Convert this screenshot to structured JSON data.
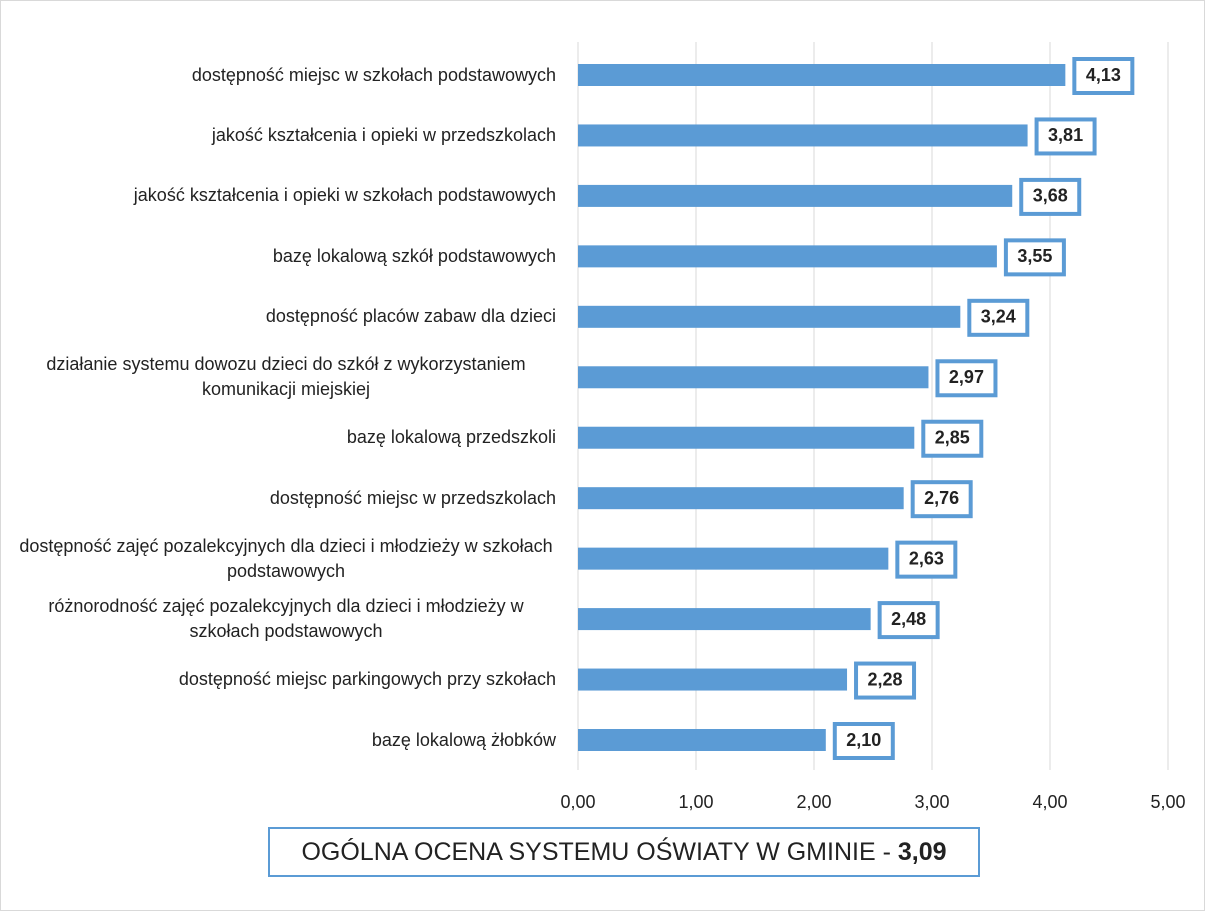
{
  "chart_data": {
    "type": "barh",
    "categories": [
      "dostępność miejsc w szkołach podstawowych",
      "jakość kształcenia i opieki w przedszkolach",
      "jakość kształcenia i opieki w szkołach podstawowych",
      "bazę lokalową szkół podstawowych",
      "dostępność placów zabaw dla dzieci",
      "działanie systemu dowozu dzieci do szkół z wykorzystaniem komunikacji miejskiej",
      "bazę lokalową przedszkoli",
      "dostępność miejsc w przedszkolach",
      "dostępność zajęć pozalekcyjnych dla dzieci i młodzieży w szkołach podstawowych",
      "różnorodność zajęć pozalekcyjnych dla dzieci i młodzieży w szkołach podstawowych",
      "dostępność miejsc parkingowych przy szkołach",
      "bazę lokalową żłobków"
    ],
    "values": [
      4.13,
      3.81,
      3.68,
      3.55,
      3.24,
      2.97,
      2.85,
      2.76,
      2.63,
      2.48,
      2.28,
      2.1
    ],
    "value_labels": [
      "4,13",
      "3,81",
      "3,68",
      "3,55",
      "3,24",
      "2,97",
      "2,85",
      "2,76",
      "2,63",
      "2,48",
      "2,28",
      "2,10"
    ],
    "color": "#5b9bd5",
    "xlim": [
      0,
      5
    ],
    "xticks": [
      {
        "value": 0,
        "label": "0,00"
      },
      {
        "value": 1,
        "label": "1,00"
      },
      {
        "value": 2,
        "label": "2,00"
      },
      {
        "value": 3,
        "label": "3,00"
      },
      {
        "value": 4,
        "label": "4,00"
      },
      {
        "value": 5,
        "label": "5,00"
      }
    ],
    "grid": true,
    "annotation": {
      "text": "OGÓLNA OCENA SYSTEMU OŚWIATY W GMINIE - ",
      "value_label": "3,09"
    }
  }
}
